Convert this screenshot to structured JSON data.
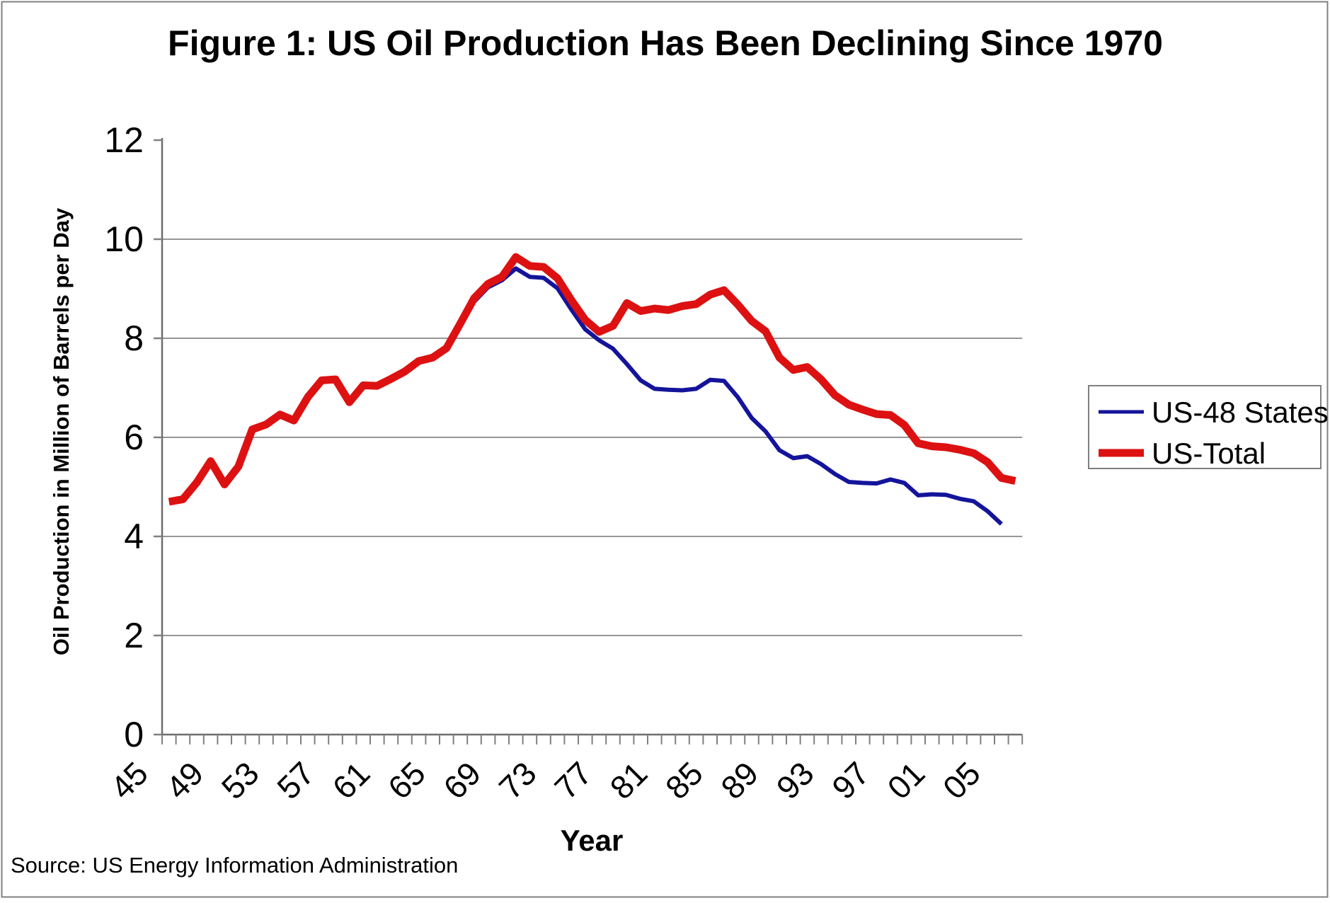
{
  "figure": {
    "title": "Figure 1: US Oil Production Has Been Declining Since 1970",
    "source_note": "Source: US Energy Information Administration"
  },
  "chart_data": {
    "type": "line",
    "title": "Figure 1: US Oil Production Has Been Declining Since 1970",
    "xlabel": "Year",
    "ylabel": "Oil Production in Million of Barrels per Day",
    "ylim": [
      0,
      12
    ],
    "yticks": [
      0,
      2,
      4,
      6,
      8,
      10,
      12
    ],
    "grid": "horizontal-only",
    "x_start_year": 1945,
    "x_end_year": 2006,
    "xtick_label_interval_years": 4,
    "xtick_labels": [
      "45",
      "49",
      "53",
      "57",
      "61",
      "65",
      "69",
      "73",
      "77",
      "81",
      "85",
      "89",
      "93",
      "97",
      "01",
      "05"
    ],
    "legend_position": "right",
    "axis_color": "#6e6e6e",
    "gridline_color": "#969696",
    "tick_color": "#808080",
    "series": [
      {
        "name": "US-48 States",
        "color": "#14149b",
        "stroke_width": 6,
        "years": [
          1945,
          1946,
          1947,
          1948,
          1949,
          1950,
          1951,
          1952,
          1953,
          1954,
          1955,
          1956,
          1957,
          1958,
          1959,
          1960,
          1961,
          1962,
          1963,
          1964,
          1965,
          1966,
          1967,
          1968,
          1969,
          1970,
          1971,
          1972,
          1973,
          1974,
          1975,
          1976,
          1977,
          1978,
          1979,
          1980,
          1981,
          1982,
          1983,
          1984,
          1985,
          1986,
          1987,
          1988,
          1989,
          1990,
          1991,
          1992,
          1993,
          1994,
          1995,
          1996,
          1997,
          1998,
          1999,
          2000,
          2001,
          2002,
          2003,
          2004,
          2005
        ],
        "values": [
          4.7,
          4.75,
          5.09,
          5.52,
          5.05,
          5.41,
          6.16,
          6.26,
          6.46,
          6.34,
          6.81,
          7.15,
          7.17,
          6.71,
          7.05,
          7.03,
          7.16,
          7.31,
          7.52,
          7.59,
          7.77,
          8.28,
          8.74,
          9.03,
          9.17,
          9.41,
          9.24,
          9.22,
          9.01,
          8.58,
          8.18,
          7.96,
          7.79,
          7.48,
          7.15,
          6.98,
          6.96,
          6.95,
          6.98,
          7.16,
          7.14,
          6.81,
          6.39,
          6.12,
          5.74,
          5.58,
          5.62,
          5.46,
          5.26,
          5.1,
          5.08,
          5.07,
          5.15,
          5.08,
          4.83,
          4.85,
          4.84,
          4.76,
          4.71,
          4.51,
          4.25
        ]
      },
      {
        "name": "US-Total",
        "color": "#dd1111",
        "stroke_width": 11,
        "years": [
          1945,
          1946,
          1947,
          1948,
          1949,
          1950,
          1951,
          1952,
          1953,
          1954,
          1955,
          1956,
          1957,
          1958,
          1959,
          1960,
          1961,
          1962,
          1963,
          1964,
          1965,
          1966,
          1967,
          1968,
          1969,
          1970,
          1971,
          1972,
          1973,
          1974,
          1975,
          1976,
          1977,
          1978,
          1979,
          1980,
          1981,
          1982,
          1983,
          1984,
          1985,
          1986,
          1987,
          1988,
          1989,
          1990,
          1991,
          1992,
          1993,
          1994,
          1995,
          1996,
          1997,
          1998,
          1999,
          2000,
          2001,
          2002,
          2003,
          2004,
          2005,
          2006
        ],
        "values": [
          4.7,
          4.75,
          5.09,
          5.52,
          5.05,
          5.41,
          6.16,
          6.26,
          6.46,
          6.34,
          6.81,
          7.15,
          7.17,
          6.71,
          7.05,
          7.04,
          7.18,
          7.33,
          7.54,
          7.61,
          7.8,
          8.3,
          8.81,
          9.1,
          9.24,
          9.64,
          9.46,
          9.44,
          9.21,
          8.77,
          8.37,
          8.13,
          8.25,
          8.71,
          8.55,
          8.6,
          8.57,
          8.65,
          8.69,
          8.88,
          8.97,
          8.68,
          8.35,
          8.14,
          7.61,
          7.36,
          7.42,
          7.17,
          6.85,
          6.66,
          6.56,
          6.47,
          6.45,
          6.25,
          5.88,
          5.82,
          5.8,
          5.75,
          5.68,
          5.5,
          5.18,
          5.12
        ]
      }
    ],
    "legend": {
      "items": [
        {
          "label": "US-48 States",
          "color": "#14149b",
          "swatch_thickness": 5
        },
        {
          "label": "US-Total",
          "color": "#dd1111",
          "swatch_thickness": 11
        }
      ]
    }
  }
}
